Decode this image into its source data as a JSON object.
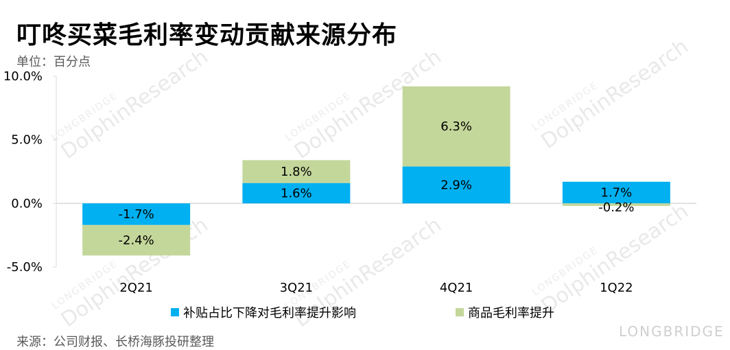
{
  "title": "叮咚买菜毛利率变动贡献来源分布",
  "unit_label": "单位：百分点",
  "source_label": "来源：公司财报、长桥海豚投研整理",
  "watermark": {
    "text": "DolphinResearch",
    "small": "LONGBRIDGE",
    "brand": "LONGBRIDGE"
  },
  "colors": {
    "subsidy": "#00B0F0",
    "product": "#C4D79B",
    "grid": "#D9D9D9"
  },
  "chart_data": {
    "type": "bar",
    "stacked": true,
    "categories": [
      "2Q21",
      "3Q21",
      "4Q21",
      "1Q22"
    ],
    "series": [
      {
        "name": "补贴占比下降对毛利率提升影响",
        "values": [
          -1.7,
          1.6,
          2.9,
          1.7
        ],
        "labels": [
          "-1.7%",
          "1.6%",
          "2.9%",
          "1.7%"
        ]
      },
      {
        "name": "商品毛利率提升",
        "values": [
          -2.4,
          1.8,
          6.3,
          -0.2
        ],
        "labels": [
          "-2.4%",
          "1.8%",
          "6.3%",
          "-0.2%"
        ]
      }
    ],
    "ylim": [
      -5,
      10
    ],
    "yticks": [
      -5,
      0,
      5,
      10
    ],
    "ytick_labels": [
      "-5.0%",
      "0.0%",
      "5.0%",
      "10.0%"
    ],
    "legend_position": "bottom",
    "grid": false
  }
}
